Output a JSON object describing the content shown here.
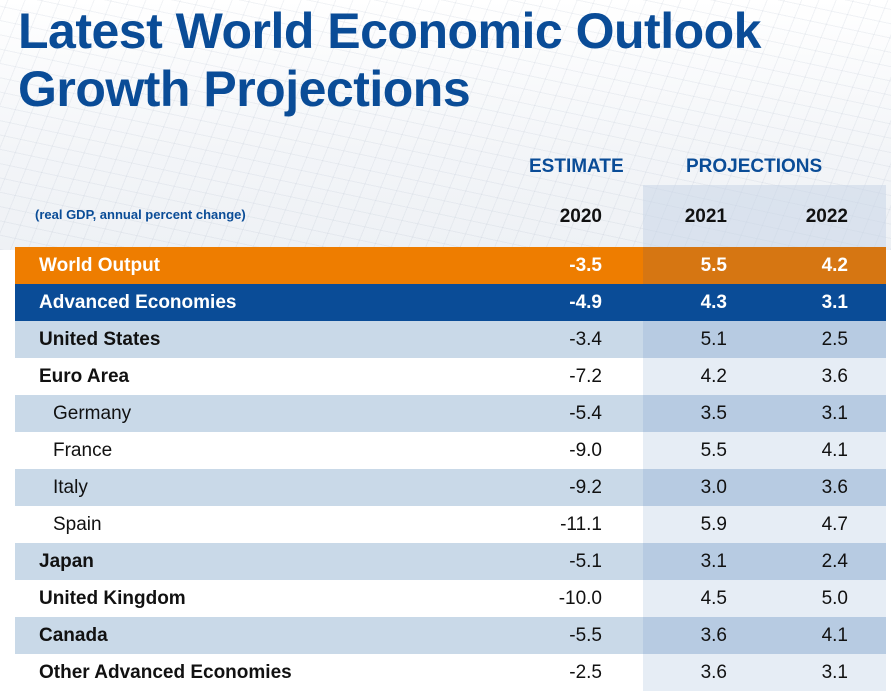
{
  "title": {
    "line1": "Latest World Economic Outlook",
    "line2": "Growth Projections"
  },
  "colors": {
    "brand_blue": "#0a4c97",
    "world_orange": "#ee7d00",
    "row_alt": "#c9d9e8",
    "projection_shade": "#b7cbe2"
  },
  "header": {
    "estimate_label": "ESTIMATE",
    "projections_label": "PROJECTIONS",
    "units": "(real GDP, annual percent change)",
    "years": [
      "2020",
      "2021",
      "2022"
    ]
  },
  "chart_data": {
    "type": "table",
    "title": "Latest World Economic Outlook Growth Projections",
    "subtitle": "(real GDP, annual percent change)",
    "columns": [
      "2020",
      "2021",
      "2022"
    ],
    "column_groups": [
      {
        "label": "ESTIMATE",
        "columns": [
          "2020"
        ]
      },
      {
        "label": "PROJECTIONS",
        "columns": [
          "2021",
          "2022"
        ]
      }
    ],
    "rows": [
      {
        "label": "World Output",
        "values": [
          "-3.5",
          "5.5",
          "4.2"
        ]
      },
      {
        "label": "Advanced Economies",
        "values": [
          "-4.9",
          "4.3",
          "3.1"
        ]
      },
      {
        "label": "United States",
        "values": [
          "-3.4",
          "5.1",
          "2.5"
        ]
      },
      {
        "label": "Euro Area",
        "values": [
          "-7.2",
          "4.2",
          "3.6"
        ]
      },
      {
        "label": "Germany",
        "values": [
          "-5.4",
          "3.5",
          "3.1"
        ]
      },
      {
        "label": "France",
        "values": [
          "-9.0",
          "5.5",
          "4.1"
        ]
      },
      {
        "label": "Italy",
        "values": [
          "-9.2",
          "3.0",
          "3.6"
        ]
      },
      {
        "label": "Spain",
        "values": [
          "-11.1",
          "5.9",
          "4.7"
        ]
      },
      {
        "label": "Japan",
        "values": [
          "-5.1",
          "3.1",
          "2.4"
        ]
      },
      {
        "label": "United Kingdom",
        "values": [
          "-10.0",
          "4.5",
          "5.0"
        ]
      },
      {
        "label": "Canada",
        "values": [
          "-5.5",
          "3.6",
          "4.1"
        ]
      },
      {
        "label": "Other Advanced Economies",
        "values": [
          "-2.5",
          "3.6",
          "3.1"
        ]
      }
    ]
  }
}
